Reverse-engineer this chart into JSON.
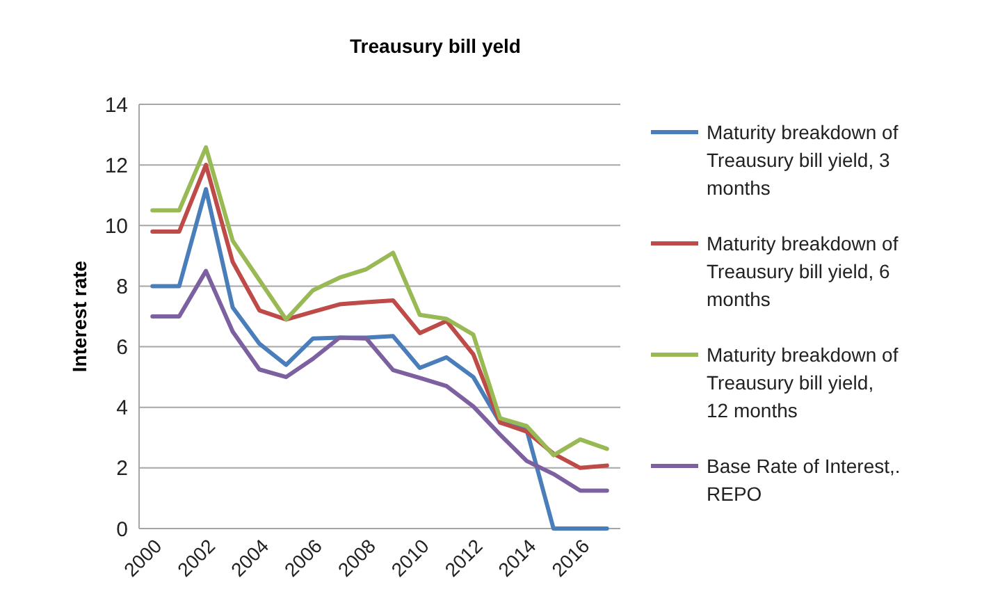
{
  "chart_data": {
    "type": "line",
    "title": "Treausury bill yeld",
    "ylabel": "Interest rate",
    "x": [
      2000,
      2001,
      2002,
      2003,
      2004,
      2005,
      2006,
      2007,
      2008,
      2009,
      2010,
      2011,
      2012,
      2013,
      2014,
      2015,
      2016,
      2017
    ],
    "xlim": [
      1999.5,
      2017.5
    ],
    "xticks": [
      2000,
      2002,
      2004,
      2006,
      2008,
      2010,
      2012,
      2014,
      2016
    ],
    "ylim": [
      0,
      14
    ],
    "yticks": [
      0,
      2,
      4,
      6,
      8,
      10,
      12,
      14
    ],
    "grid": "y",
    "legend": "right",
    "marker": "none",
    "line_style": "solid",
    "series": [
      {
        "name": "Maturity breakdown of Treausury bill yield, 3 months",
        "color": "#4a7ebb",
        "values": [
          8.0,
          8.0,
          11.2,
          7.3,
          6.1,
          5.4,
          6.27,
          6.3,
          6.3,
          6.35,
          5.3,
          5.65,
          5.0,
          3.5,
          3.25,
          0,
          0,
          0
        ]
      },
      {
        "name": "Maturity breakdown of Treausury bill yield, 6 months",
        "color": "#be4b48",
        "values": [
          9.8,
          9.8,
          12.0,
          8.8,
          7.2,
          6.9,
          7.15,
          7.4,
          7.47,
          7.53,
          6.45,
          6.85,
          5.75,
          3.5,
          3.2,
          2.47,
          2.0,
          2.08
        ]
      },
      {
        "name": "Maturity breakdown of Treausury bill yield, 12 months",
        "color": "#98b954",
        "values": [
          10.5,
          10.5,
          12.58,
          9.5,
          8.2,
          6.9,
          7.86,
          8.28,
          8.56,
          9.1,
          7.05,
          6.92,
          6.4,
          3.64,
          3.38,
          2.42,
          2.94,
          2.63
        ]
      },
      {
        "name": "Base Rate of Interest,. REPO",
        "color": "#7d60a0",
        "values": [
          7.0,
          7.0,
          8.5,
          6.5,
          5.25,
          5.0,
          5.6,
          6.3,
          6.27,
          5.23,
          4.97,
          4.7,
          4.03,
          3.1,
          2.23,
          1.8,
          1.25,
          1.25
        ]
      }
    ]
  }
}
